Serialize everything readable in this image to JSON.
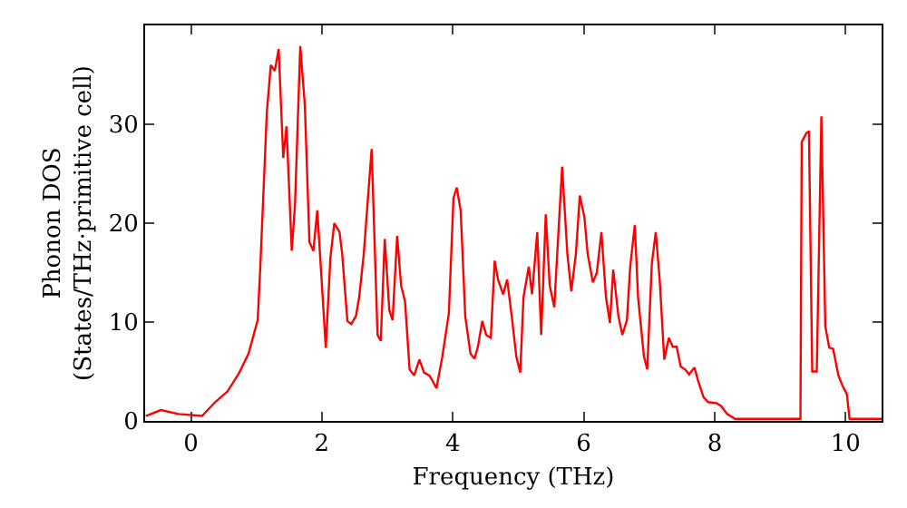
{
  "chart_data": {
    "type": "line",
    "xlabel": "Frequency (THz)",
    "ylabel": "Phonon DOS\n(States/THz·primitive cell)",
    "xlim": [
      -0.7,
      10.55
    ],
    "ylim": [
      0,
      40
    ],
    "xticks": [
      0,
      2,
      4,
      6,
      8,
      10
    ],
    "yticks": [
      0,
      10,
      20,
      30
    ],
    "grid": false,
    "marker": "none",
    "line_style": "solid",
    "series": [
      {
        "color": "#ff0000",
        "x": [
          -0.69,
          -0.46,
          -0.19,
          0.17,
          0.37,
          0.56,
          0.74,
          0.88,
          1.02,
          1.06,
          1.16,
          1.22,
          1.28,
          1.34,
          1.41,
          1.46,
          1.54,
          1.59,
          1.67,
          1.74,
          1.81,
          1.87,
          1.93,
          2.06,
          2.13,
          2.19,
          2.27,
          2.31,
          2.39,
          2.45,
          2.52,
          2.57,
          2.64,
          2.76,
          2.85,
          2.9,
          2.96,
          3.03,
          3.08,
          3.15,
          3.21,
          3.27,
          3.34,
          3.41,
          3.49,
          3.56,
          3.64,
          3.67,
          3.75,
          3.84,
          3.94,
          4.01,
          4.06,
          4.12,
          4.19,
          4.27,
          4.33,
          4.38,
          4.45,
          4.51,
          4.58,
          4.64,
          4.69,
          4.77,
          4.83,
          4.9,
          4.97,
          5.03,
          5.08,
          5.16,
          5.21,
          5.29,
          5.35,
          5.42,
          5.48,
          5.55,
          5.6,
          5.67,
          5.75,
          5.81,
          5.88,
          5.94,
          6.01,
          6.06,
          6.14,
          6.2,
          6.27,
          6.34,
          6.4,
          6.45,
          6.53,
          6.59,
          6.66,
          6.71,
          6.78,
          6.83,
          6.92,
          6.97,
          7.04,
          7.1,
          7.16,
          7.23,
          7.3,
          7.36,
          7.42,
          7.48,
          7.55,
          7.61,
          7.69,
          7.75,
          7.83,
          7.9,
          8.03,
          8.1,
          8.19,
          8.31,
          9.31,
          9.33,
          9.4,
          9.44,
          9.49,
          9.56,
          9.63,
          9.69,
          9.75,
          9.81,
          9.89,
          9.95,
          10.02,
          10.06,
          10.55
        ],
        "values": [
          0.5,
          1.1,
          0.7,
          0.5,
          1.9,
          3.0,
          4.9,
          6.8,
          10.2,
          15.7,
          31.3,
          36.0,
          35.4,
          37.6,
          26.6,
          29.8,
          17.2,
          21.9,
          37.9,
          31.9,
          18.1,
          17.2,
          21.3,
          7.4,
          16.5,
          20.0,
          19.1,
          16.9,
          10.1,
          9.8,
          10.6,
          12.5,
          16.9,
          27.5,
          8.7,
          8.1,
          18.4,
          11.2,
          10.2,
          18.7,
          13.7,
          12.1,
          5.2,
          4.6,
          6.2,
          4.9,
          4.6,
          4.3,
          3.3,
          6.5,
          10.9,
          22.5,
          23.6,
          21.3,
          10.6,
          6.8,
          6.3,
          7.4,
          10.1,
          8.7,
          8.4,
          16.2,
          14.3,
          12.8,
          14.3,
          10.6,
          6.5,
          4.9,
          12.5,
          15.6,
          12.8,
          19.1,
          8.7,
          20.9,
          13.7,
          11.5,
          17.5,
          25.7,
          16.9,
          13.1,
          16.9,
          22.8,
          20.6,
          16.9,
          14.0,
          15.0,
          19.1,
          12.5,
          9.9,
          15.3,
          10.6,
          8.7,
          10.2,
          15.6,
          19.8,
          12.5,
          6.5,
          5.2,
          15.9,
          19.1,
          14.3,
          6.2,
          8.4,
          7.5,
          7.5,
          5.5,
          5.2,
          4.7,
          5.4,
          4.0,
          2.4,
          1.9,
          1.8,
          1.5,
          0.7,
          0.2,
          0.2,
          28.2,
          29.1,
          29.3,
          5.0,
          5.0,
          30.8,
          9.6,
          7.4,
          7.3,
          4.6,
          3.6,
          2.7,
          0.2,
          0.2
        ]
      }
    ]
  }
}
